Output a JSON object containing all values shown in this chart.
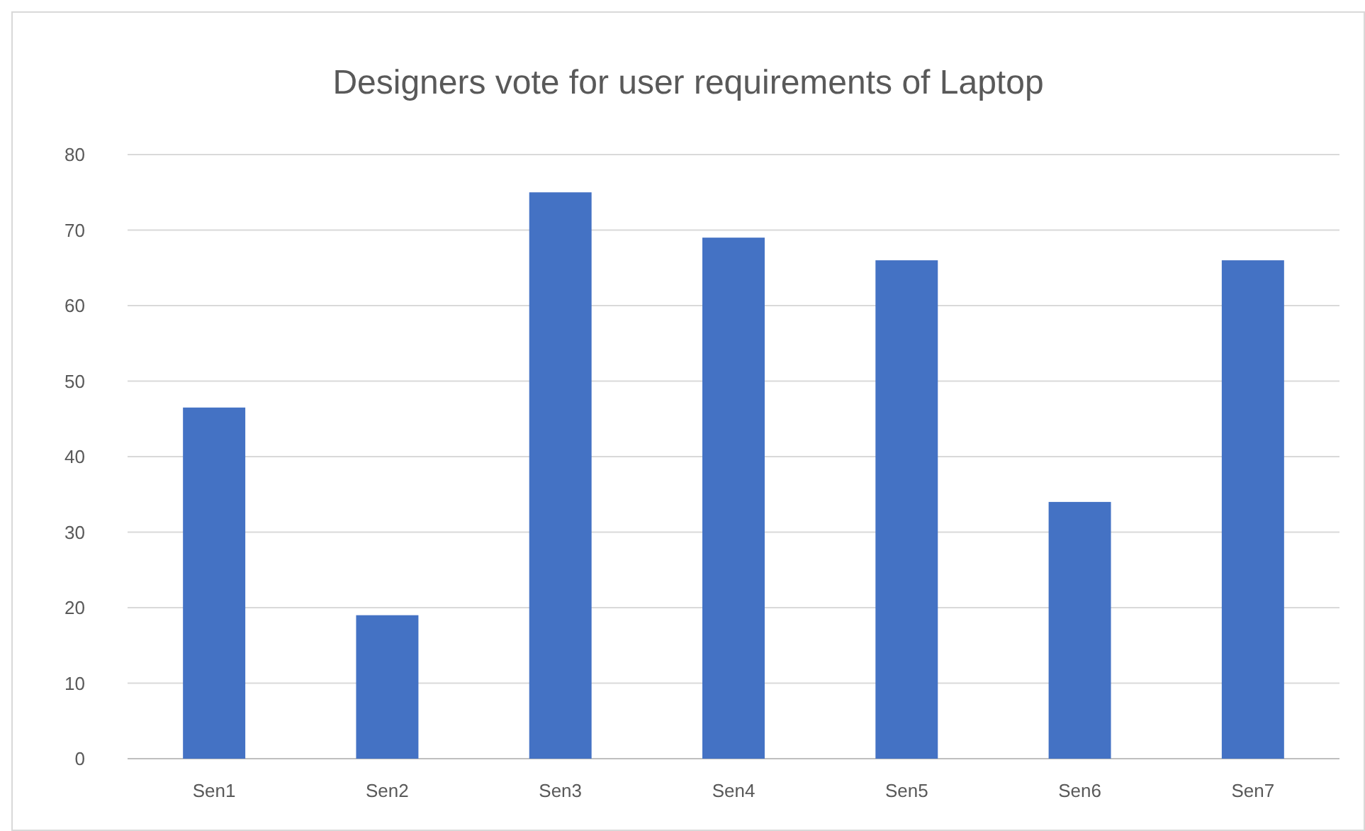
{
  "chart_data": {
    "type": "bar",
    "title": "Designers vote for user requirements of Laptop",
    "categories": [
      "Sen1",
      "Sen2",
      "Sen3",
      "Sen4",
      "Sen5",
      "Sen6",
      "Sen7"
    ],
    "values": [
      46.5,
      19,
      75,
      69,
      66,
      34,
      66
    ],
    "color": "#4472c4",
    "ylim": [
      0,
      80
    ],
    "yticks": [
      0,
      10,
      20,
      30,
      40,
      50,
      60,
      70,
      80
    ],
    "grid": "y"
  }
}
